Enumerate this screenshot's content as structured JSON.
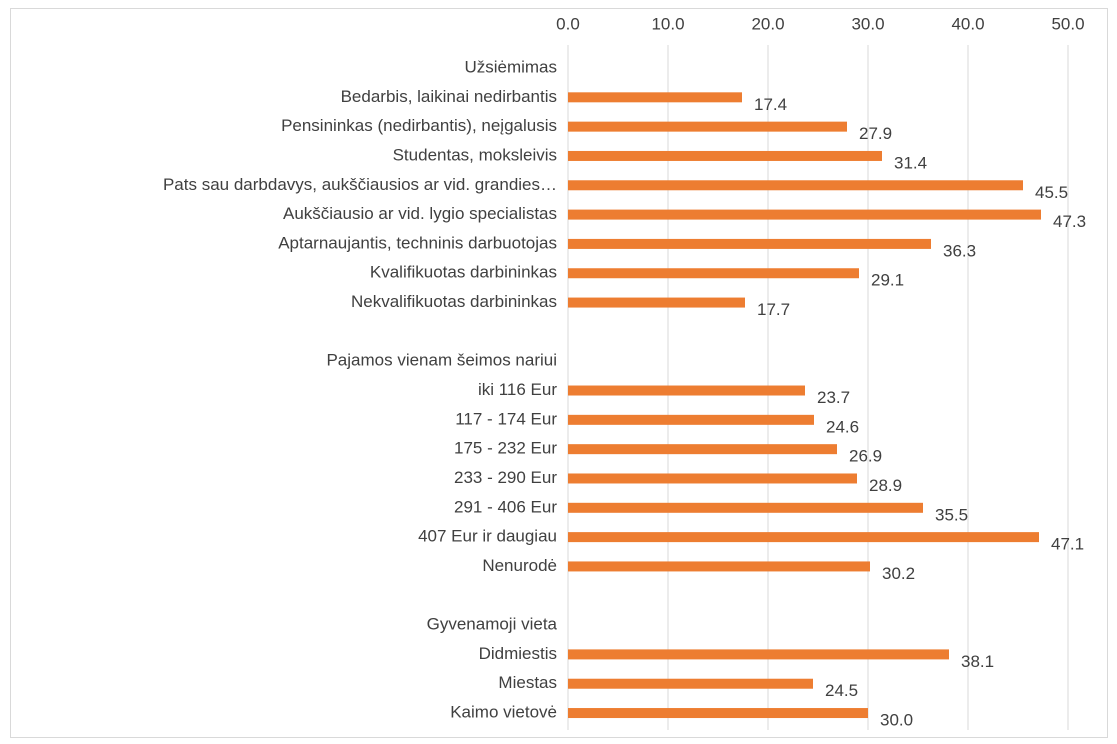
{
  "chart_data": {
    "type": "bar",
    "orientation": "horizontal",
    "categories": [
      "Užsiėmimas",
      "Bedarbis, laikinai nedirbantis",
      "Pensininkas (nedirbantis), neįgalusis",
      "Studentas, moksleivis",
      "Pats sau darbdavys, aukščiausios ar vid. grandies…",
      "Aukščiausio ar vid. lygio specialistas",
      "Aptarnaujantis, techninis darbuotojas",
      "Kvalifikuotas darbininkas",
      "Nekvalifikuotas darbininkas",
      null,
      "Pajamos vienam šeimos nariui",
      "iki 116 Eur",
      "117 - 174 Eur",
      "175 - 232 Eur",
      "233 - 290 Eur",
      "291 - 406 Eur",
      "407 Eur ir daugiau",
      "Nenurodė",
      null,
      "Gyvenamoji vieta",
      "Didmiestis",
      "Miestas",
      "Kaimo vietovė"
    ],
    "values": [
      null,
      17.4,
      27.9,
      31.4,
      45.5,
      47.3,
      36.3,
      29.1,
      17.7,
      null,
      null,
      23.7,
      24.6,
      26.9,
      28.9,
      35.5,
      47.1,
      30.2,
      null,
      null,
      38.1,
      24.5,
      30.0
    ],
    "value_labels": [
      null,
      "17.4",
      "27.9",
      "31.4",
      "45.5",
      "47.3",
      "36.3",
      "29.1",
      "17.7",
      null,
      null,
      "23.7",
      "24.6",
      "26.9",
      "28.9",
      "35.5",
      "47.1",
      "30.2",
      null,
      null,
      "38.1",
      "24.5",
      "30.0"
    ],
    "color": "#ed7d31",
    "xlim": [
      0,
      50
    ],
    "xticks": [
      {
        "value": 0,
        "label": "0.0"
      },
      {
        "value": 10,
        "label": "10.0"
      },
      {
        "value": 20,
        "label": "20.0"
      },
      {
        "value": 30,
        "label": "30.0"
      },
      {
        "value": 40,
        "label": "40.0"
      },
      {
        "value": 50,
        "label": "50.0"
      }
    ],
    "grid": true
  }
}
